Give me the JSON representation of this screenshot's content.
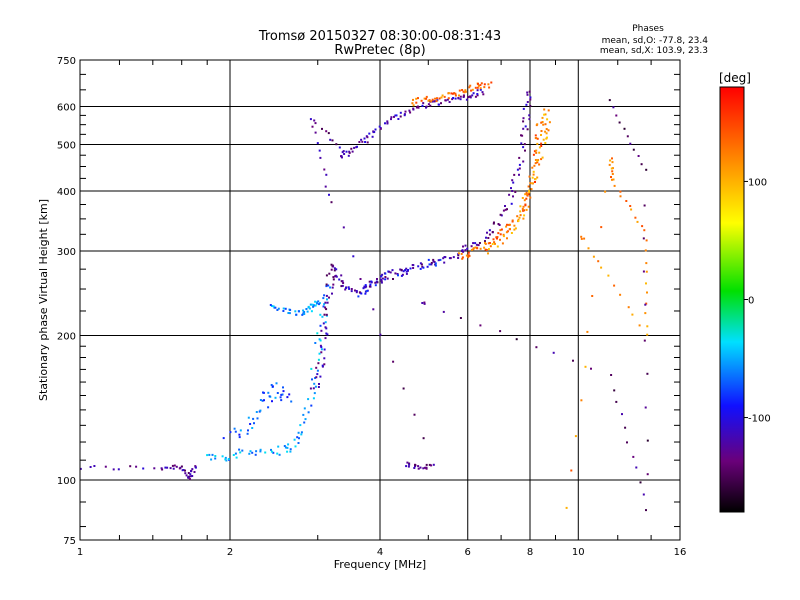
{
  "chart_data": {
    "type": "scatter",
    "title": "Tromsø 20150327 08:30:00-08:31:43",
    "subtitle": "RwPretec (8p)",
    "xlabel": "Frequency [MHz]",
    "ylabel": "Stationary phase Virtual Height [km]",
    "x_scale": "log",
    "y_scale": "log",
    "xlim": [
      1,
      16
    ],
    "ylim": [
      75,
      750
    ],
    "x_ticks": [
      1,
      2,
      4,
      6,
      8,
      10,
      16
    ],
    "y_ticks": [
      75,
      100,
      200,
      300,
      400,
      500,
      600,
      750
    ],
    "grid": true,
    "phases": {
      "heading": "Phases",
      "line_o": "mean, sd,O: -77.8, 23.4",
      "line_x": "mean, sd,X: 103.9, 23.3"
    },
    "colorbar": {
      "label": "[deg]",
      "min": -180,
      "max": 180,
      "ticks": [
        100,
        0,
        -100
      ]
    },
    "traces": [
      {
        "phase": -125,
        "spread": 0.012,
        "points": [
          [
            1.0,
            106
          ],
          [
            1.45,
            106
          ],
          [
            1.6,
            107
          ],
          [
            1.65,
            100
          ],
          [
            1.7,
            106
          ]
        ]
      },
      {
        "phase": -55,
        "spread": 0.02,
        "points": [
          [
            1.8,
            112
          ],
          [
            2.0,
            112
          ],
          [
            2.2,
            115
          ],
          [
            2.5,
            115
          ],
          [
            2.7,
            118
          ],
          [
            2.85,
            135
          ],
          [
            2.95,
            165
          ],
          [
            3.05,
            210
          ],
          [
            3.15,
            250
          ]
        ]
      },
      {
        "phase": -70,
        "spread": 0.03,
        "points": [
          [
            2.0,
            125
          ],
          [
            2.2,
            130
          ],
          [
            2.35,
            145
          ],
          [
            2.45,
            155
          ],
          [
            2.6,
            150
          ]
        ]
      },
      {
        "phase": -60,
        "spread": 0.012,
        "points": [
          [
            2.4,
            230
          ],
          [
            2.6,
            225
          ],
          [
            2.8,
            222
          ],
          [
            2.9,
            228
          ],
          [
            3.0,
            235
          ]
        ]
      },
      {
        "phase": -125,
        "spread": 0.018,
        "points": [
          [
            2.95,
            155
          ],
          [
            3.05,
            175
          ],
          [
            3.1,
            205
          ],
          [
            3.15,
            240
          ],
          [
            3.2,
            280
          ],
          [
            3.3,
            265
          ],
          [
            3.45,
            250
          ],
          [
            3.7,
            248
          ],
          [
            4.0,
            262
          ],
          [
            4.4,
            272
          ],
          [
            5.0,
            282
          ],
          [
            5.6,
            292
          ],
          [
            6.0,
            303
          ],
          [
            6.5,
            320
          ],
          [
            7.0,
            350
          ],
          [
            7.4,
            400
          ],
          [
            7.7,
            470
          ],
          [
            7.85,
            560
          ],
          [
            8.0,
            640
          ]
        ]
      },
      {
        "phase": -100,
        "spread": 0.018,
        "points": [
          [
            3.6,
            245
          ],
          [
            3.9,
            258
          ],
          [
            4.2,
            268
          ],
          [
            4.6,
            275
          ],
          [
            5.2,
            285
          ]
        ]
      },
      {
        "phase": 135,
        "spread": 0.018,
        "points": [
          [
            5.8,
            292
          ],
          [
            6.2,
            298
          ],
          [
            6.6,
            310
          ],
          [
            7.0,
            325
          ],
          [
            7.5,
            345
          ],
          [
            7.9,
            380
          ],
          [
            8.15,
            430
          ],
          [
            8.3,
            500
          ],
          [
            8.4,
            560
          ]
        ]
      },
      {
        "phase": 110,
        "spread": 0.02,
        "points": [
          [
            6.5,
            300
          ],
          [
            7.2,
            325
          ],
          [
            7.7,
            355
          ],
          [
            8.0,
            400
          ],
          [
            8.25,
            460
          ],
          [
            8.5,
            520
          ],
          [
            8.7,
            580
          ]
        ]
      },
      {
        "phase": -120,
        "spread": 0.015,
        "points": [
          [
            3.35,
            470
          ],
          [
            3.6,
            495
          ],
          [
            3.8,
            520
          ],
          [
            4.1,
            555
          ],
          [
            4.4,
            580
          ],
          [
            4.8,
            600
          ],
          [
            5.2,
            610
          ],
          [
            5.6,
            620
          ],
          [
            6.0,
            630
          ],
          [
            6.4,
            645
          ]
        ]
      },
      {
        "phase": 130,
        "spread": 0.015,
        "points": [
          [
            4.6,
            610
          ],
          [
            5.0,
            620
          ],
          [
            5.4,
            630
          ],
          [
            5.8,
            640
          ],
          [
            6.2,
            660
          ],
          [
            6.6,
            665
          ]
        ]
      },
      {
        "phase": -130,
        "spread": 0.01,
        "points": [
          [
            4.5,
            108
          ],
          [
            4.8,
            106
          ],
          [
            5.1,
            107
          ],
          [
            3.2,
            380
          ],
          [
            2.9,
            570
          ],
          [
            3.4,
            480
          ]
        ]
      },
      {
        "phase": 120,
        "spread": 0.008,
        "points": [
          [
            9.5,
            88
          ],
          [
            11.6,
            470
          ],
          [
            11.7,
            420
          ],
          [
            13.6,
            330
          ],
          [
            13.7,
            200
          ],
          [
            10.2,
            320
          ]
        ]
      },
      {
        "phase": -140,
        "spread": 0.008,
        "points": [
          [
            11.5,
            615
          ],
          [
            13.6,
            440
          ],
          [
            13.7,
            87
          ],
          [
            11.6,
            165
          ],
          [
            4.9,
            233
          ]
        ]
      }
    ]
  }
}
